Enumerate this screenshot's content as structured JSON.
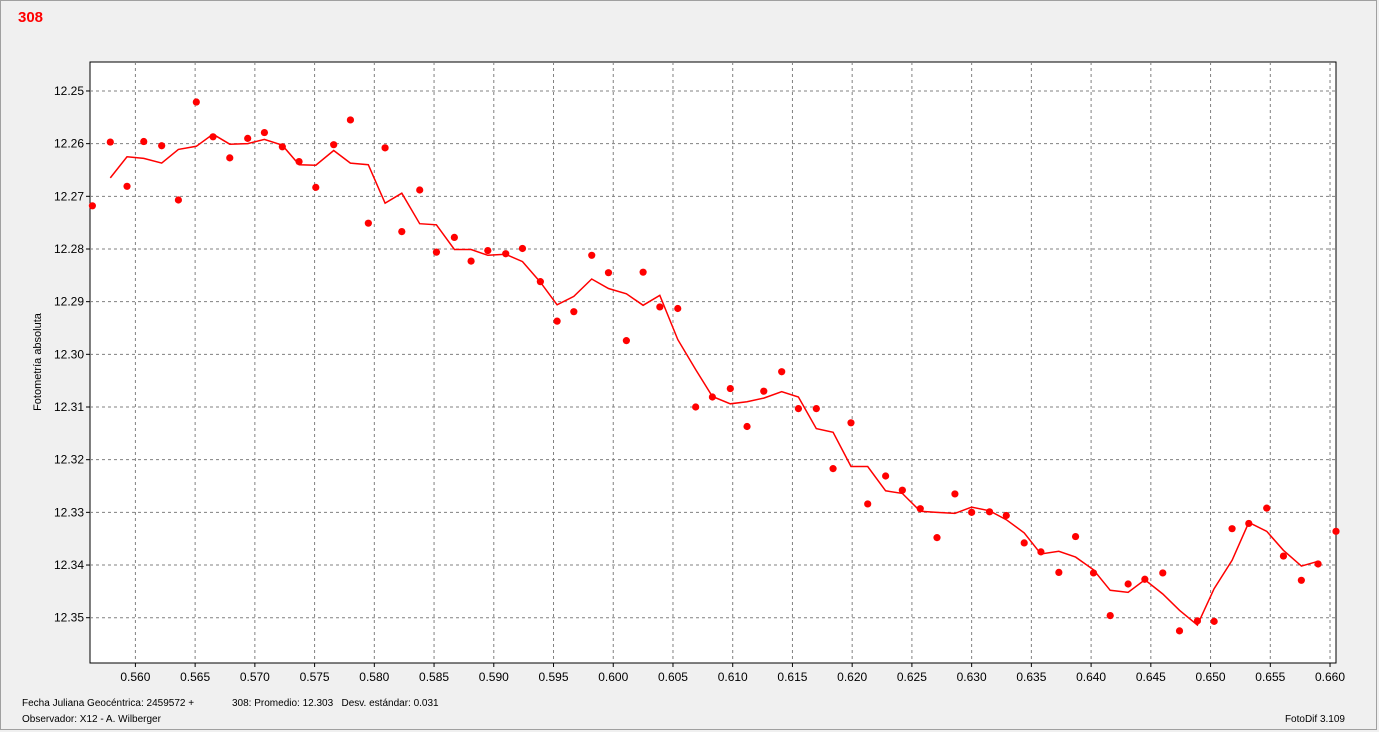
{
  "title": "308",
  "footer": {
    "line1_left": "Fecha Juliana Geocéntrica: 2459572 +",
    "line1_mid": "308: Promedio: 12.303   Desv. estándar: 0.031",
    "line2_left": "Observador: X12 - A. Wilberger",
    "line2_right": "FotoDif 3.109"
  },
  "chart_data": {
    "type": "scatter",
    "title": "308",
    "ylabel": "Fotometría absoluta",
    "xlabel": "",
    "xlim": [
      0.5562,
      0.6605
    ],
    "ylim": [
      12.3586,
      12.2445
    ],
    "y_inverted": true,
    "xticks": [
      "0.560",
      "0.565",
      "0.570",
      "0.575",
      "0.580",
      "0.585",
      "0.590",
      "0.595",
      "0.600",
      "0.605",
      "0.610",
      "0.615",
      "0.620",
      "0.625",
      "0.630",
      "0.635",
      "0.640",
      "0.645",
      "0.650",
      "0.655",
      "0.660"
    ],
    "yticks": [
      "12.25",
      "12.26",
      "12.27",
      "12.28",
      "12.29",
      "12.30",
      "12.31",
      "12.32",
      "12.33",
      "12.34",
      "12.35"
    ],
    "grid": true,
    "color": "#ff0000",
    "series": [
      {
        "kind": "points",
        "x": [
          0.5564,
          0.5579,
          0.5593,
          0.5607,
          0.5622,
          0.5636,
          0.5651,
          0.5665,
          0.5679,
          0.5694,
          0.5708,
          0.5723,
          0.5737,
          0.5751,
          0.5766,
          0.578,
          0.5795,
          0.5809,
          0.5823,
          0.5838,
          0.5852,
          0.5867,
          0.5881,
          0.5895,
          0.591,
          0.5924,
          0.5939,
          0.5953,
          0.5967,
          0.5982,
          0.5996,
          0.6011,
          0.6025,
          0.6039,
          0.6054,
          0.6069,
          0.6083,
          0.6098,
          0.6112,
          0.6126,
          0.6141,
          0.6155,
          0.617,
          0.6184,
          0.6199,
          0.6213,
          0.6228,
          0.6242,
          0.6257,
          0.6271,
          0.6286,
          0.63,
          0.6315,
          0.6329,
          0.6344,
          0.6358,
          0.6373,
          0.6387,
          0.6402,
          0.6416,
          0.6431,
          0.6445,
          0.646,
          0.6474,
          0.6489,
          0.6503,
          0.6518,
          0.6532,
          0.6547,
          0.6561,
          0.6576,
          0.659,
          0.6605
        ],
        "y": [
          12.2718,
          12.2597,
          12.2681,
          12.2596,
          12.2604,
          12.2707,
          12.2521,
          12.2587,
          12.2627,
          12.259,
          12.2579,
          12.2606,
          12.2634,
          12.2683,
          12.2602,
          12.2555,
          12.2751,
          12.2608,
          12.2767,
          12.2688,
          12.2806,
          12.2778,
          12.2823,
          12.2803,
          12.2809,
          12.2799,
          12.2862,
          12.2937,
          12.2919,
          12.2812,
          12.2845,
          12.2974,
          12.2844,
          12.291,
          12.2913,
          12.31,
          12.3081,
          12.3065,
          12.3137,
          12.307,
          12.3033,
          12.3103,
          12.3103,
          12.3217,
          12.313,
          12.3284,
          12.3231,
          12.3258,
          12.3293,
          12.3348,
          12.3265,
          12.33,
          12.3299,
          12.3306,
          12.3358,
          12.3375,
          12.3414,
          12.3346,
          12.3415,
          12.3496,
          12.3436,
          12.3427,
          12.3415,
          12.3525,
          12.3506,
          12.3507,
          12.3331,
          12.3321,
          12.3292,
          12.3383,
          12.3429,
          12.3398,
          12.3336
        ]
      },
      {
        "kind": "line",
        "name": "",
        "x": [
          0.5579,
          0.5593,
          0.5607,
          0.5622,
          0.5636,
          0.5651,
          0.5665,
          0.5679,
          0.5694,
          0.5708,
          0.5723,
          0.5737,
          0.5751,
          0.5766,
          0.578,
          0.5795,
          0.5809,
          0.5823,
          0.5838,
          0.5852,
          0.5867,
          0.5881,
          0.5895,
          0.591,
          0.5924,
          0.5939,
          0.5953,
          0.5967,
          0.5982,
          0.5996,
          0.6011,
          0.6025,
          0.6039,
          0.6054,
          0.6069,
          0.6083,
          0.6098,
          0.6112,
          0.6126,
          0.6141,
          0.6155,
          0.617,
          0.6184,
          0.6199,
          0.6213,
          0.6228,
          0.6242,
          0.6257,
          0.6271,
          0.6286,
          0.63,
          0.6315,
          0.6329,
          0.6344,
          0.6358,
          0.6373,
          0.6387,
          0.6402,
          0.6416,
          0.6431,
          0.6445,
          0.646,
          0.6474,
          0.6489,
          0.6503,
          0.6518,
          0.6532,
          0.6547,
          0.6561,
          0.6576,
          0.659
        ],
        "y": [
          12.2665,
          12.2625,
          12.2628,
          12.2637,
          12.2611,
          12.2605,
          12.2582,
          12.2601,
          12.26,
          12.2592,
          12.2603,
          12.264,
          12.2641,
          12.2613,
          12.2637,
          12.264,
          12.2713,
          12.2694,
          12.2752,
          12.2754,
          12.2801,
          12.2801,
          12.2812,
          12.281,
          12.2824,
          12.2863,
          12.2906,
          12.289,
          12.2857,
          12.2875,
          12.2885,
          12.2907,
          12.2888,
          12.2972,
          12.3029,
          12.308,
          12.3094,
          12.309,
          12.3083,
          12.3071,
          12.3081,
          12.3141,
          12.3148,
          12.3213,
          12.3213,
          12.3259,
          12.3264,
          12.3298,
          12.33,
          12.3302,
          12.329,
          12.3297,
          12.3314,
          12.3339,
          12.3379,
          12.3374,
          12.3385,
          12.3409,
          12.3448,
          12.3452,
          12.3428,
          12.3455,
          12.3486,
          12.3514,
          12.3445,
          12.3391,
          12.3319,
          12.3336,
          12.3372,
          12.3402,
          12.3393
        ]
      }
    ]
  }
}
